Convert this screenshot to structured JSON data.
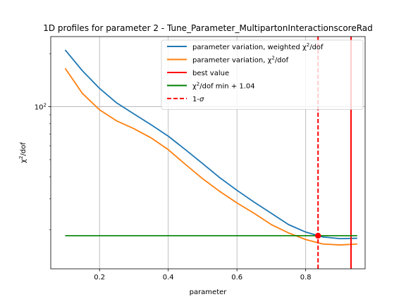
{
  "chart_data": {
    "type": "line",
    "title": "1D profiles for parameter 2 - Tune_Parameter_MultipartonInteractionscoreRad",
    "xlabel": "parameter",
    "ylabel": "χ²/dof",
    "ylabel_base": "χ",
    "ylabel_sup": "2",
    "ylabel_tail": "/dof",
    "xlim": [
      0.058,
      0.973
    ],
    "ylim": [
      12.0,
      250.0
    ],
    "yscale": "log",
    "grid": true,
    "legend_position": "upper right",
    "x_ticks": [
      0.2,
      0.4,
      0.6,
      0.8
    ],
    "x_tick_labels": [
      "0.2",
      "0.4",
      "0.6",
      "0.8"
    ],
    "y_major_tick": {
      "value": 100,
      "base": "10",
      "exp": "2"
    },
    "y_minor_ticks": [
      20,
      30,
      40,
      50,
      60,
      70,
      80,
      90,
      200
    ],
    "series": [
      {
        "name": "parameter variation, weighted χ²/dof",
        "name_prefix": "parameter variation, weighted ",
        "name_sup_base": "χ",
        "name_sup": "2",
        "name_suffix": "/dof",
        "color": "#1f77b4",
        "style": "solid",
        "x": [
          0.1,
          0.15,
          0.2,
          0.25,
          0.3,
          0.35,
          0.4,
          0.45,
          0.5,
          0.55,
          0.6,
          0.65,
          0.7,
          0.75,
          0.8,
          0.85,
          0.9,
          0.95
        ],
        "y": [
          210,
          160,
          127,
          105,
          91,
          79,
          68,
          57,
          47.5,
          39.5,
          33.5,
          28.7,
          24.8,
          21.4,
          19.4,
          18.2,
          17.8,
          17.9
        ]
      },
      {
        "name": "parameter variation, χ²/dof",
        "name_prefix": "parameter variation, ",
        "name_sup_base": "χ",
        "name_sup": "2",
        "name_suffix": "/dof",
        "color": "#ff7f0e",
        "style": "solid",
        "x": [
          0.1,
          0.15,
          0.2,
          0.25,
          0.3,
          0.35,
          0.4,
          0.45,
          0.5,
          0.55,
          0.6,
          0.65,
          0.7,
          0.75,
          0.8,
          0.85,
          0.9,
          0.95
        ],
        "y": [
          165,
          119,
          96,
          83,
          75,
          66.5,
          57,
          47,
          39,
          33,
          28.4,
          24.8,
          21.4,
          19.2,
          17.6,
          16.6,
          16.4,
          16.6
        ]
      },
      {
        "name": "best value",
        "color": "#ff0000",
        "style": "vline",
        "x_value": 0.932
      },
      {
        "name": "χ²/dof min + 1.04",
        "name_prefix": "",
        "name_sup_base": "χ",
        "name_sup": "2",
        "name_suffix": "/dof min + 1.04",
        "color": "#008000",
        "style": "hline",
        "y_value": 18.5,
        "x_range": [
          0.1,
          0.95
        ]
      },
      {
        "name": "1-σ",
        "name_prefix": "1-",
        "name_italic": "σ",
        "color": "#ff0000",
        "style": "vline-dashed",
        "x_value": 0.836
      }
    ],
    "markers": [
      {
        "x": 0.836,
        "y": 18.5,
        "color": "#ff0000"
      }
    ]
  }
}
